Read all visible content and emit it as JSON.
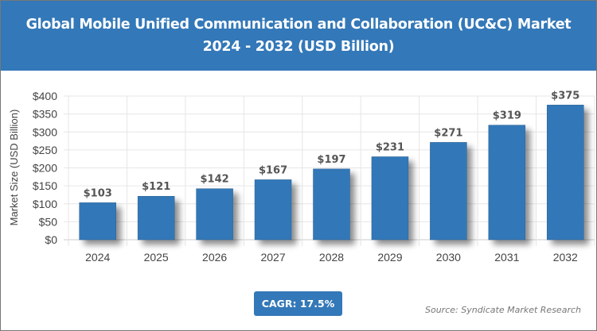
{
  "header": {
    "title_line1": "Global Mobile Unified Communication and Collaboration (UC&C) Market",
    "title_line2": "2024 - 2032 (USD Billion)"
  },
  "chart_data": {
    "type": "bar",
    "categories": [
      "2024",
      "2025",
      "2026",
      "2027",
      "2028",
      "2029",
      "2030",
      "2031",
      "2032"
    ],
    "values": [
      103,
      121,
      142,
      167,
      197,
      231,
      271,
      319,
      375
    ],
    "data_labels": [
      "$103",
      "$121",
      "$142",
      "$167",
      "$197",
      "$231",
      "$271",
      "$319",
      "$375"
    ],
    "ylabel": "Market Size (USD Billion)",
    "xlabel": "",
    "ylim": [
      0,
      400
    ],
    "yticks": [
      0,
      50,
      100,
      150,
      200,
      250,
      300,
      350,
      400
    ],
    "ytick_labels": [
      "$0",
      "$50",
      "$100",
      "$150",
      "$200",
      "$250",
      "$300",
      "$350",
      "$400"
    ],
    "grid": true,
    "bar_color": "#3378b8"
  },
  "footer": {
    "cagr": "CAGR: 17.5%",
    "source": "Source: Syndicate Market Research"
  }
}
